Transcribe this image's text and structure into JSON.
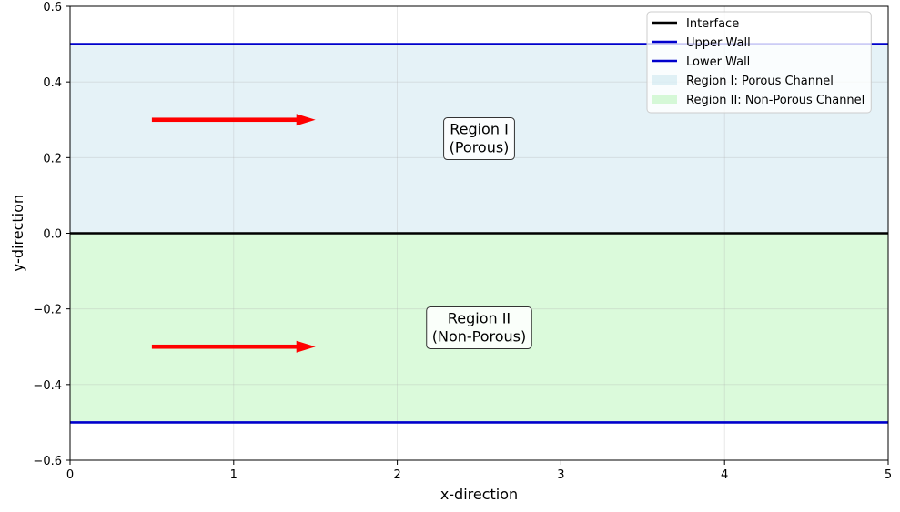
{
  "chart_data": {
    "type": "line",
    "xlabel": "x-direction",
    "ylabel": "y-direction",
    "xlim": [
      0,
      5
    ],
    "ylim": [
      -0.6,
      0.6
    ],
    "grid": true,
    "x_ticks": [
      0,
      1,
      2,
      3,
      4,
      5
    ],
    "x_tick_labels": [
      "0",
      "1",
      "2",
      "3",
      "4",
      "5"
    ],
    "y_ticks": [
      -0.6,
      -0.4,
      -0.2,
      0.0,
      0.2,
      0.4,
      0.6
    ],
    "y_tick_labels": [
      "−0.6",
      "−0.4",
      "−0.2",
      "0.0",
      "0.2",
      "0.4",
      "0.6"
    ],
    "lines": [
      {
        "name": "Interface",
        "y": 0.0,
        "color": "#000000"
      },
      {
        "name": "Upper Wall",
        "y": 0.5,
        "color": "#0000cc"
      },
      {
        "name": "Lower Wall",
        "y": -0.5,
        "color": "#0000cc"
      }
    ],
    "regions": [
      {
        "name": "Region I: Porous Channel",
        "y_from": 0.0,
        "y_to": 0.5,
        "color": "#add8e6"
      },
      {
        "name": "Region II: Non-Porous Channel",
        "y_from": -0.5,
        "y_to": 0.0,
        "color": "#90ee90"
      }
    ],
    "arrows": [
      {
        "x_from": 0.5,
        "x_to": 1.5,
        "y": 0.3,
        "color": "#ff0000"
      },
      {
        "x_from": 0.5,
        "x_to": 1.5,
        "y": -0.3,
        "color": "#ff0000"
      }
    ],
    "annotations": [
      {
        "lines": [
          "Region I",
          "(Porous)"
        ],
        "x": 2.5,
        "y": 0.25
      },
      {
        "lines": [
          "Region II",
          "(Non-Porous)"
        ],
        "x": 2.5,
        "y": -0.25
      }
    ],
    "legend_position": "top-right"
  }
}
